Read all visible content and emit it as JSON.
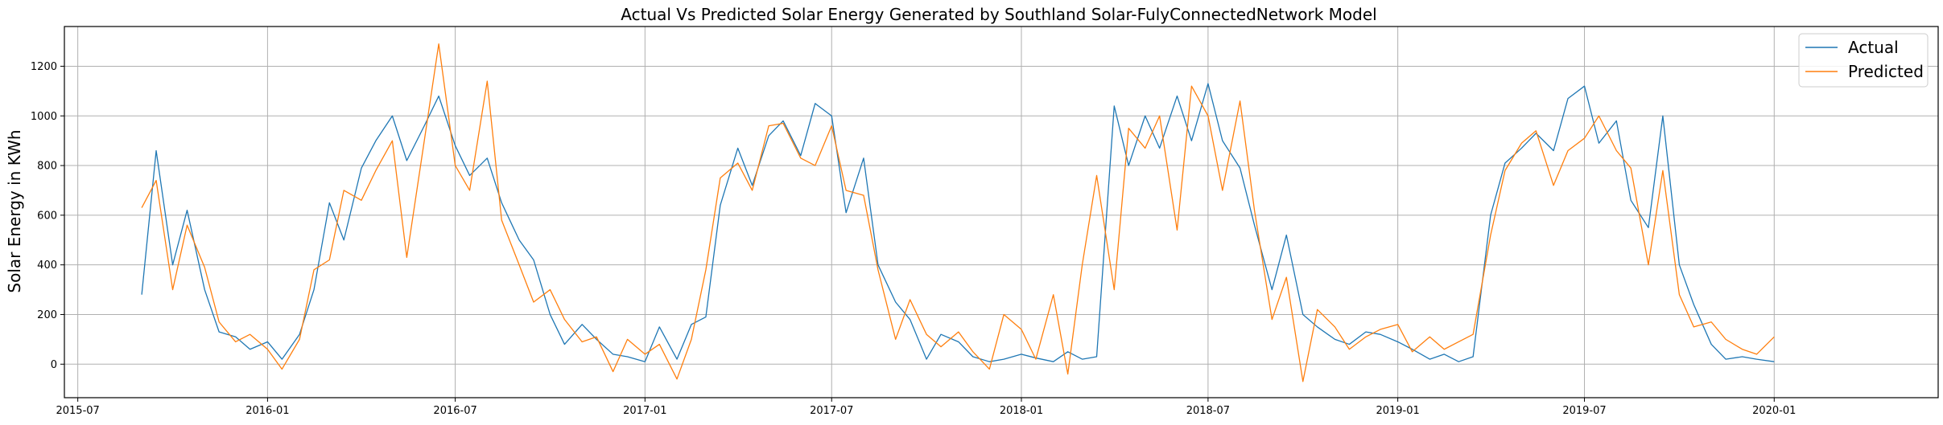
{
  "chart_data": {
    "type": "line",
    "title": "Actual Vs Predicted Solar Energy Generated by Southland Solar-FulyConnectedNetwork Model",
    "xlabel": "",
    "ylabel": "Solar Energy in KWh",
    "grid": true,
    "legend_position": "top-right",
    "ylim": [
      -135,
      1360
    ],
    "xlim": [
      "2015-06-18",
      "2020-06-08"
    ],
    "y_ticks": [
      0,
      200,
      400,
      600,
      800,
      1000,
      1200
    ],
    "x_ticks": [
      "2015-07",
      "2016-01",
      "2016-07",
      "2017-01",
      "2017-07",
      "2018-01",
      "2018-07",
      "2019-01",
      "2019-07",
      "2020-01"
    ],
    "series": [
      {
        "name": "Actual",
        "color": "#1f77b4",
        "x": [
          "2015-09-01",
          "2015-09-15",
          "2015-10-01",
          "2015-10-15",
          "2015-11-01",
          "2015-11-15",
          "2015-12-01",
          "2015-12-15",
          "2016-01-01",
          "2016-01-15",
          "2016-02-01",
          "2016-02-15",
          "2016-03-01",
          "2016-03-15",
          "2016-04-01",
          "2016-04-15",
          "2016-05-01",
          "2016-05-15",
          "2016-06-01",
          "2016-06-15",
          "2016-07-01",
          "2016-07-15",
          "2016-08-01",
          "2016-08-15",
          "2016-09-01",
          "2016-09-15",
          "2016-10-01",
          "2016-10-15",
          "2016-11-01",
          "2016-11-15",
          "2016-12-01",
          "2016-12-15",
          "2017-01-01",
          "2017-01-15",
          "2017-02-01",
          "2017-02-15",
          "2017-03-01",
          "2017-03-15",
          "2017-04-01",
          "2017-04-15",
          "2017-05-01",
          "2017-05-15",
          "2017-06-01",
          "2017-06-15",
          "2017-07-01",
          "2017-07-15",
          "2017-08-01",
          "2017-08-15",
          "2017-09-01",
          "2017-09-15",
          "2017-10-01",
          "2017-10-15",
          "2017-11-01",
          "2017-11-15",
          "2017-12-01",
          "2017-12-15",
          "2018-01-01",
          "2018-01-15",
          "2018-02-01",
          "2018-02-15",
          "2018-03-01",
          "2018-03-15",
          "2018-04-01",
          "2018-04-15",
          "2018-05-01",
          "2018-05-15",
          "2018-06-01",
          "2018-06-15",
          "2018-07-01",
          "2018-07-15",
          "2018-08-01",
          "2018-08-15",
          "2018-09-01",
          "2018-09-15",
          "2018-10-01",
          "2018-10-15",
          "2018-11-01",
          "2018-11-15",
          "2018-12-01",
          "2018-12-15",
          "2019-01-01",
          "2019-01-15",
          "2019-02-01",
          "2019-02-15",
          "2019-03-01",
          "2019-03-15",
          "2019-04-01",
          "2019-04-15",
          "2019-05-01",
          "2019-05-15",
          "2019-06-01",
          "2019-06-15",
          "2019-07-01",
          "2019-07-15",
          "2019-08-01",
          "2019-08-15",
          "2019-09-01",
          "2019-09-15",
          "2019-10-01",
          "2019-10-15",
          "2019-11-01",
          "2019-11-15",
          "2019-12-01",
          "2019-12-15",
          "2020-01-01"
        ],
        "values": [
          280,
          860,
          400,
          620,
          300,
          130,
          110,
          60,
          90,
          20,
          120,
          300,
          650,
          500,
          790,
          900,
          1000,
          820,
          960,
          1080,
          880,
          760,
          830,
          650,
          500,
          420,
          200,
          80,
          160,
          100,
          40,
          30,
          10,
          150,
          20,
          160,
          190,
          640,
          870,
          720,
          920,
          980,
          840,
          1050,
          1000,
          610,
          830,
          400,
          250,
          180,
          20,
          120,
          90,
          30,
          10,
          20,
          40,
          25,
          10,
          50,
          20,
          30,
          1040,
          800,
          1000,
          870,
          1080,
          900,
          1130,
          900,
          790,
          560,
          300,
          520,
          200,
          150,
          100,
          80,
          130,
          120,
          90,
          60,
          20,
          40,
          10,
          30,
          600,
          810,
          870,
          930,
          860,
          1070,
          1120,
          890,
          980,
          660,
          550,
          1000,
          400,
          240,
          80,
          20,
          30,
          20,
          10
        ]
      },
      {
        "name": "Predicted",
        "color": "#ff7f0e",
        "x": [
          "2015-09-01",
          "2015-09-15",
          "2015-10-01",
          "2015-10-15",
          "2015-11-01",
          "2015-11-15",
          "2015-12-01",
          "2015-12-15",
          "2016-01-01",
          "2016-01-15",
          "2016-02-01",
          "2016-02-15",
          "2016-03-01",
          "2016-03-15",
          "2016-04-01",
          "2016-04-15",
          "2016-05-01",
          "2016-05-15",
          "2016-06-01",
          "2016-06-15",
          "2016-07-01",
          "2016-07-15",
          "2016-08-01",
          "2016-08-15",
          "2016-09-01",
          "2016-09-15",
          "2016-10-01",
          "2016-10-15",
          "2016-11-01",
          "2016-11-15",
          "2016-12-01",
          "2016-12-15",
          "2017-01-01",
          "2017-01-15",
          "2017-02-01",
          "2017-02-15",
          "2017-03-01",
          "2017-03-15",
          "2017-04-01",
          "2017-04-15",
          "2017-05-01",
          "2017-05-15",
          "2017-06-01",
          "2017-06-15",
          "2017-07-01",
          "2017-07-15",
          "2017-08-01",
          "2017-08-15",
          "2017-09-01",
          "2017-09-15",
          "2017-10-01",
          "2017-10-15",
          "2017-11-01",
          "2017-11-15",
          "2017-12-01",
          "2017-12-15",
          "2018-01-01",
          "2018-01-15",
          "2018-02-01",
          "2018-02-15",
          "2018-03-01",
          "2018-03-15",
          "2018-04-01",
          "2018-04-15",
          "2018-05-01",
          "2018-05-15",
          "2018-06-01",
          "2018-06-15",
          "2018-07-01",
          "2018-07-15",
          "2018-08-01",
          "2018-08-15",
          "2018-09-01",
          "2018-09-15",
          "2018-10-01",
          "2018-10-15",
          "2018-11-01",
          "2018-11-15",
          "2018-12-01",
          "2018-12-15",
          "2019-01-01",
          "2019-01-15",
          "2019-02-01",
          "2019-02-15",
          "2019-03-01",
          "2019-03-15",
          "2019-04-01",
          "2019-04-15",
          "2019-05-01",
          "2019-05-15",
          "2019-06-01",
          "2019-06-15",
          "2019-07-01",
          "2019-07-15",
          "2019-08-01",
          "2019-08-15",
          "2019-09-01",
          "2019-09-15",
          "2019-10-01",
          "2019-10-15",
          "2019-11-01",
          "2019-11-15",
          "2019-12-01",
          "2019-12-15",
          "2020-01-01"
        ],
        "values": [
          630,
          740,
          300,
          560,
          390,
          170,
          90,
          120,
          60,
          -20,
          100,
          380,
          420,
          700,
          660,
          780,
          900,
          430,
          900,
          1290,
          800,
          700,
          1140,
          580,
          400,
          250,
          300,
          180,
          90,
          110,
          -30,
          100,
          40,
          80,
          -60,
          100,
          380,
          750,
          810,
          700,
          960,
          970,
          830,
          800,
          960,
          700,
          680,
          380,
          100,
          260,
          120,
          70,
          130,
          50,
          -20,
          200,
          140,
          20,
          280,
          -40,
          400,
          760,
          300,
          950,
          870,
          1000,
          540,
          1120,
          1000,
          700,
          1060,
          620,
          180,
          350,
          -70,
          220,
          150,
          60,
          110,
          140,
          160,
          50,
          110,
          60,
          90,
          120,
          520,
          780,
          890,
          940,
          720,
          860,
          910,
          1000,
          860,
          790,
          400,
          780,
          280,
          150,
          170,
          100,
          60,
          40,
          110
        ]
      }
    ]
  }
}
